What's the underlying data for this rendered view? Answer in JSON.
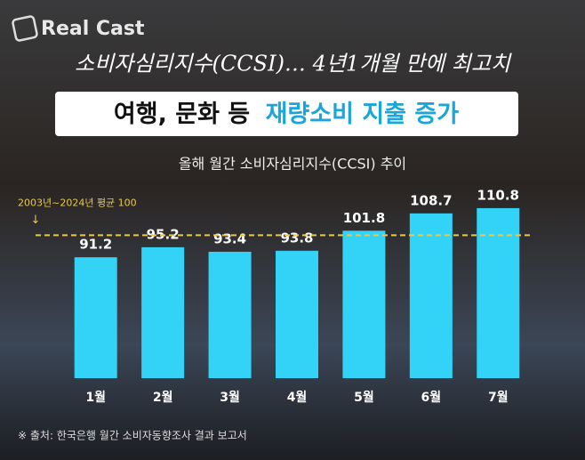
{
  "chart_data": {
    "type": "bar",
    "brand": "Real Cast",
    "headline": "소비자심리지수(CCSI)… 4년1개월 만에 최고치",
    "title_parts": [
      "여행, 문화 등",
      "재량소비 지출 증가"
    ],
    "subtitle": "올해 월간 소비자심리지수(CCSI) 추이",
    "categories": [
      "1월",
      "2월",
      "3월",
      "4월",
      "5월",
      "6월",
      "7월"
    ],
    "values": [
      91.2,
      95.2,
      93.4,
      93.8,
      101.8,
      108.7,
      110.8
    ],
    "color": "#33d3f7",
    "ylim": [
      43,
      120
    ],
    "reference_line": {
      "value": 100,
      "label": "2003년~2024년 평균 100",
      "arrow": "↓",
      "color": "#e8c94c"
    },
    "source": "※ 출처: 한국은행 월간 소비자동향조사 결과 보고서"
  }
}
